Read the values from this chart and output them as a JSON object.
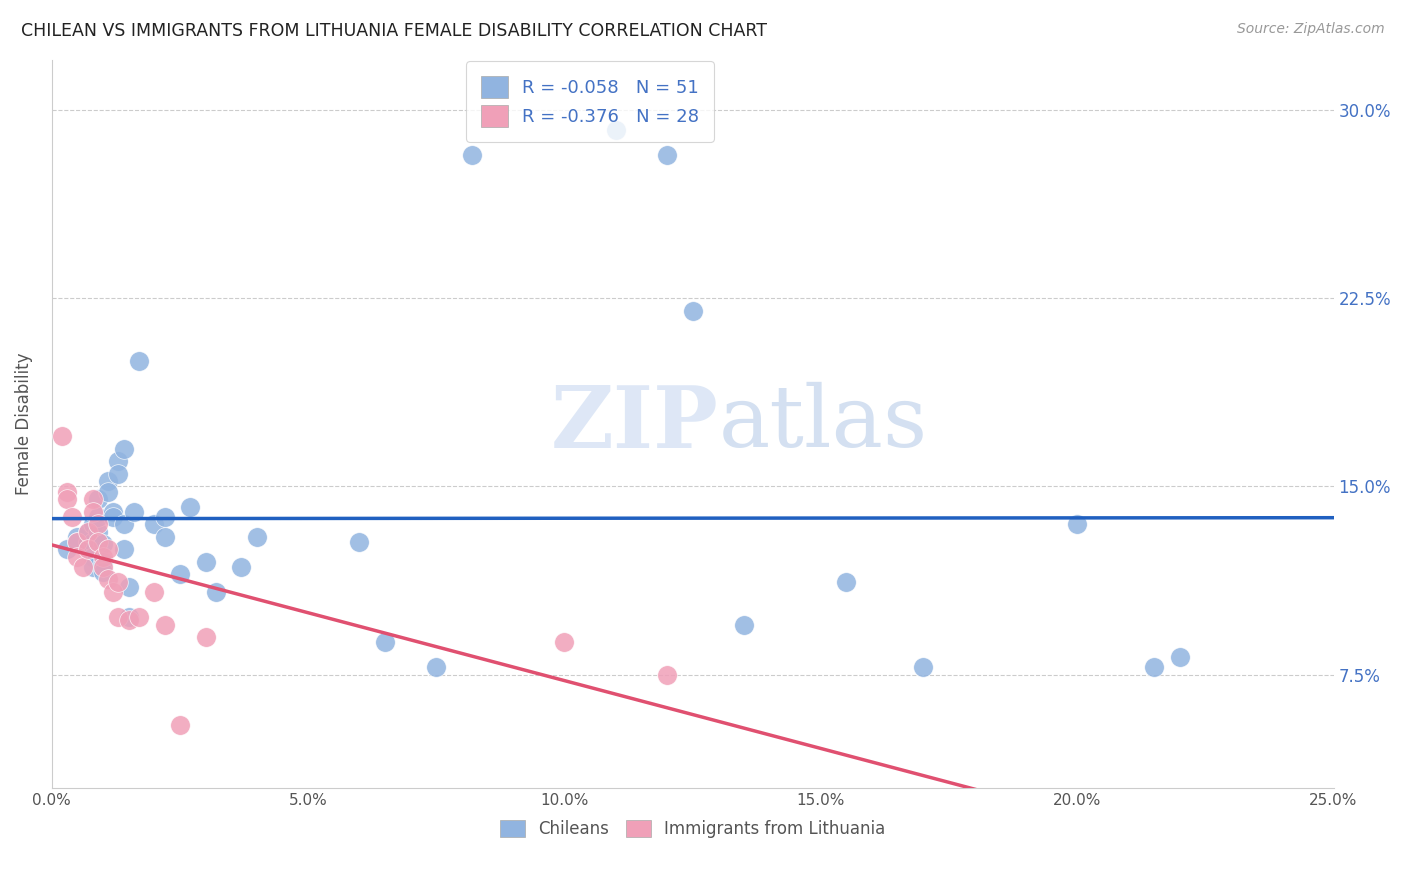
{
  "title": "CHILEAN VS IMMIGRANTS FROM LITHUANIA FEMALE DISABILITY CORRELATION CHART",
  "source": "Source: ZipAtlas.com",
  "ylabel": "Female Disability",
  "ytick_labels": [
    "7.5%",
    "15.0%",
    "22.5%",
    "30.0%"
  ],
  "ytick_values": [
    0.075,
    0.15,
    0.225,
    0.3
  ],
  "xlim": [
    0.0,
    0.25
  ],
  "ylim": [
    0.03,
    0.32
  ],
  "chilean_color": "#91b4e0",
  "immigrant_color": "#f0a0b8",
  "trendline_chilean_color": "#2060c0",
  "trendline_immigrant_color": "#e05070",
  "watermark_zip": "ZIP",
  "watermark_atlas": "atlas",
  "chilean_x": [
    0.003,
    0.005,
    0.005,
    0.007,
    0.007,
    0.007,
    0.008,
    0.008,
    0.008,
    0.008,
    0.009,
    0.009,
    0.009,
    0.01,
    0.01,
    0.01,
    0.011,
    0.011,
    0.012,
    0.012,
    0.013,
    0.013,
    0.014,
    0.014,
    0.014,
    0.015,
    0.015,
    0.016,
    0.017,
    0.02,
    0.022,
    0.022,
    0.025,
    0.027,
    0.03,
    0.032,
    0.037,
    0.04,
    0.06,
    0.065,
    0.075,
    0.082,
    0.11,
    0.12,
    0.125,
    0.135,
    0.155,
    0.17,
    0.2,
    0.215,
    0.22
  ],
  "chilean_y": [
    0.125,
    0.13,
    0.128,
    0.128,
    0.132,
    0.125,
    0.135,
    0.128,
    0.122,
    0.118,
    0.132,
    0.145,
    0.138,
    0.127,
    0.12,
    0.116,
    0.152,
    0.148,
    0.14,
    0.138,
    0.16,
    0.155,
    0.165,
    0.135,
    0.125,
    0.11,
    0.098,
    0.14,
    0.2,
    0.135,
    0.138,
    0.13,
    0.115,
    0.142,
    0.12,
    0.108,
    0.118,
    0.13,
    0.128,
    0.088,
    0.078,
    0.282,
    0.292,
    0.282,
    0.22,
    0.095,
    0.112,
    0.078,
    0.135,
    0.078,
    0.082
  ],
  "immigrant_x": [
    0.002,
    0.003,
    0.003,
    0.004,
    0.005,
    0.005,
    0.006,
    0.007,
    0.007,
    0.008,
    0.008,
    0.009,
    0.009,
    0.01,
    0.01,
    0.011,
    0.011,
    0.012,
    0.013,
    0.013,
    0.015,
    0.017,
    0.02,
    0.022,
    0.025,
    0.03,
    0.1,
    0.12
  ],
  "immigrant_y": [
    0.17,
    0.148,
    0.145,
    0.138,
    0.128,
    0.122,
    0.118,
    0.132,
    0.125,
    0.145,
    0.14,
    0.135,
    0.128,
    0.122,
    0.118,
    0.125,
    0.113,
    0.108,
    0.112,
    0.098,
    0.097,
    0.098,
    0.108,
    0.095,
    0.055,
    0.09,
    0.088,
    0.075
  ],
  "background_color": "#ffffff",
  "grid_color": "#cccccc"
}
